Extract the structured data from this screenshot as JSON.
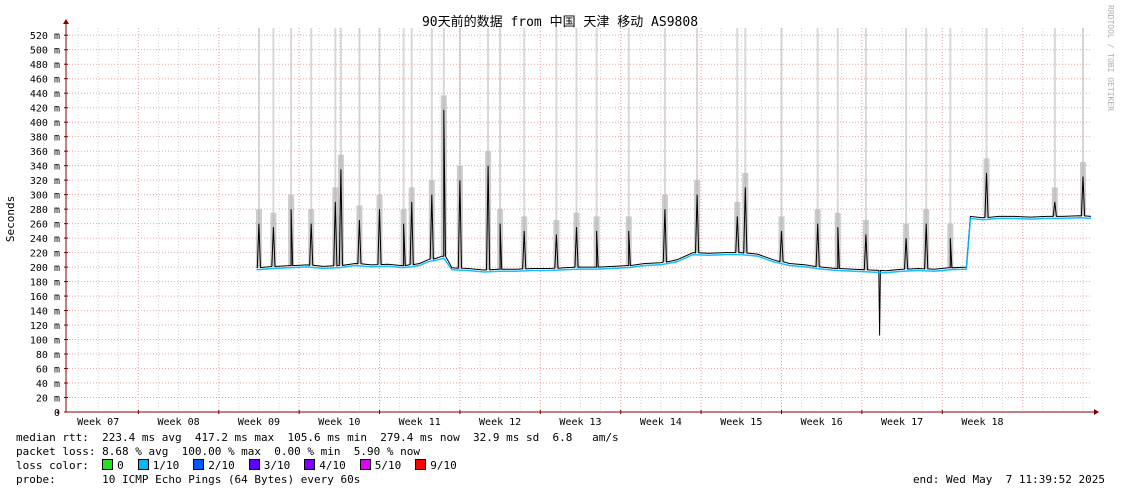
{
  "chart_data": {
    "type": "line",
    "title": "90天前的数据 from 中国 天津 移动 AS9808",
    "ylabel": "Seconds",
    "watermark": "RRDTOOL / TOBI OETIKER",
    "ylim": [
      0,
      0.53
    ],
    "y_ticks": [
      {
        "v": 0,
        "label": "0"
      },
      {
        "v": 0.02,
        "label": "20 m"
      },
      {
        "v": 0.04,
        "label": "40 m"
      },
      {
        "v": 0.06,
        "label": "60 m"
      },
      {
        "v": 0.08,
        "label": "80 m"
      },
      {
        "v": 0.1,
        "label": "100 m"
      },
      {
        "v": 0.12,
        "label": "120 m"
      },
      {
        "v": 0.14,
        "label": "140 m"
      },
      {
        "v": 0.16,
        "label": "160 m"
      },
      {
        "v": 0.18,
        "label": "180 m"
      },
      {
        "v": 0.2,
        "label": "200 m"
      },
      {
        "v": 0.22,
        "label": "220 m"
      },
      {
        "v": 0.24,
        "label": "240 m"
      },
      {
        "v": 0.26,
        "label": "260 m"
      },
      {
        "v": 0.28,
        "label": "280 m"
      },
      {
        "v": 0.3,
        "label": "300 m"
      },
      {
        "v": 0.32,
        "label": "320 m"
      },
      {
        "v": 0.34,
        "label": "340 m"
      },
      {
        "v": 0.36,
        "label": "360 m"
      },
      {
        "v": 0.38,
        "label": "380 m"
      },
      {
        "v": 0.4,
        "label": "400 m"
      },
      {
        "v": 0.42,
        "label": "420 m"
      },
      {
        "v": 0.44,
        "label": "440 m"
      },
      {
        "v": 0.46,
        "label": "460 m"
      },
      {
        "v": 0.48,
        "label": "480 m"
      },
      {
        "v": 0.5,
        "label": "500 m"
      },
      {
        "v": 0.52,
        "label": "520 m"
      }
    ],
    "x_range_weeks": [
      6.6,
      19.35
    ],
    "x_ticks": [
      "Week 07",
      "Week 08",
      "Week 09",
      "Week 10",
      "Week 11",
      "Week 12",
      "Week 13",
      "Week 14",
      "Week 15",
      "Week 16",
      "Week 17",
      "Week 18"
    ],
    "x_tick_weeks": [
      7,
      8,
      9,
      10,
      11,
      12,
      13,
      14,
      15,
      16,
      17,
      18
    ],
    "series": [
      {
        "name": "median rtt",
        "x_week": [
          8.97,
          9.2,
          9.4,
          9.6,
          9.8,
          10.0,
          10.2,
          10.4,
          10.6,
          10.8,
          11.0,
          11.1,
          11.2,
          11.3,
          11.4,
          11.6,
          11.8,
          12.0,
          12.2,
          12.4,
          12.6,
          12.8,
          13.0,
          13.2,
          13.4,
          13.6,
          13.8,
          14.0,
          14.2,
          14.4,
          14.6,
          14.8,
          15.0,
          15.2,
          15.4,
          15.6,
          15.8,
          16.0,
          16.2,
          16.4,
          16.6,
          16.8,
          17.0,
          17.2,
          17.4,
          17.6,
          17.8,
          17.85,
          18.0,
          18.2,
          18.4,
          18.6,
          18.8,
          19.0,
          19.2,
          19.35
        ],
        "y": [
          0.199,
          0.201,
          0.202,
          0.203,
          0.201,
          0.202,
          0.205,
          0.203,
          0.204,
          0.202,
          0.205,
          0.21,
          0.212,
          0.215,
          0.199,
          0.198,
          0.196,
          0.197,
          0.197,
          0.198,
          0.198,
          0.199,
          0.2,
          0.2,
          0.201,
          0.202,
          0.205,
          0.206,
          0.21,
          0.22,
          0.219,
          0.22,
          0.22,
          0.218,
          0.21,
          0.205,
          0.203,
          0.2,
          0.198,
          0.197,
          0.196,
          0.195,
          0.197,
          0.198,
          0.197,
          0.199,
          0.2,
          0.27,
          0.268,
          0.27,
          0.27,
          0.269,
          0.27,
          0.27,
          0.271,
          0.27
        ]
      }
    ],
    "max_spikes": [
      {
        "x_week": 9.0,
        "y": 0.26
      },
      {
        "x_week": 9.18,
        "y": 0.255
      },
      {
        "x_week": 9.4,
        "y": 0.28
      },
      {
        "x_week": 9.65,
        "y": 0.26
      },
      {
        "x_week": 9.95,
        "y": 0.29
      },
      {
        "x_week": 10.02,
        "y": 0.335
      },
      {
        "x_week": 10.25,
        "y": 0.265
      },
      {
        "x_week": 10.5,
        "y": 0.28
      },
      {
        "x_week": 10.8,
        "y": 0.26
      },
      {
        "x_week": 10.9,
        "y": 0.29
      },
      {
        "x_week": 11.15,
        "y": 0.3
      },
      {
        "x_week": 11.3,
        "y": 0.417
      },
      {
        "x_week": 11.5,
        "y": 0.32
      },
      {
        "x_week": 11.85,
        "y": 0.34
      },
      {
        "x_week": 12.0,
        "y": 0.26
      },
      {
        "x_week": 12.3,
        "y": 0.25
      },
      {
        "x_week": 12.7,
        "y": 0.245
      },
      {
        "x_week": 12.95,
        "y": 0.255
      },
      {
        "x_week": 13.2,
        "y": 0.25
      },
      {
        "x_week": 13.6,
        "y": 0.25
      },
      {
        "x_week": 14.05,
        "y": 0.28
      },
      {
        "x_week": 14.45,
        "y": 0.3
      },
      {
        "x_week": 14.95,
        "y": 0.27
      },
      {
        "x_week": 15.05,
        "y": 0.31
      },
      {
        "x_week": 15.5,
        "y": 0.25
      },
      {
        "x_week": 15.95,
        "y": 0.26
      },
      {
        "x_week": 16.2,
        "y": 0.255
      },
      {
        "x_week": 16.55,
        "y": 0.245
      },
      {
        "x_week": 17.05,
        "y": 0.24
      },
      {
        "x_week": 17.3,
        "y": 0.26
      },
      {
        "x_week": 17.6,
        "y": 0.24
      },
      {
        "x_week": 18.05,
        "y": 0.33
      },
      {
        "x_week": 18.9,
        "y": 0.29
      },
      {
        "x_week": 19.25,
        "y": 0.325
      }
    ],
    "min_dip": {
      "x_week": 16.72,
      "y": 0.1056
    },
    "colors": {
      "background": "#ffffff",
      "grid_major": "#e9a6a6",
      "grid_minor": "#d4d4d4",
      "axis": "#800000",
      "smoke": "#b8b8b8",
      "line": "#000000"
    },
    "grid": true
  },
  "legend": {
    "median_rtt": {
      "label": "median rtt:",
      "text": "223.4 ms avg  417.2 ms max  105.6 ms min  279.4 ms now  32.9 ms sd  6.8   am/s"
    },
    "packet_loss": {
      "label": "packet loss:",
      "text": "8.68 % avg  100.00 % max  0.00 % min  5.90 % now"
    },
    "loss_color": {
      "label": "loss color:",
      "items": [
        {
          "label": "0",
          "color": "#26e026"
        },
        {
          "label": "1/10",
          "color": "#00b8ff"
        },
        {
          "label": "2/10",
          "color": "#0059ff"
        },
        {
          "label": "3/10",
          "color": "#5e00ff"
        },
        {
          "label": "4/10",
          "color": "#7e00ff"
        },
        {
          "label": "5/10",
          "color": "#dd00ff"
        },
        {
          "label": "9/10",
          "color": "#ff0000"
        }
      ]
    },
    "probe": {
      "label": "probe:",
      "text": "10 ICMP Echo Pings (64 Bytes) every 60s"
    },
    "end": "end: Wed May  7 11:39:52 2025"
  }
}
